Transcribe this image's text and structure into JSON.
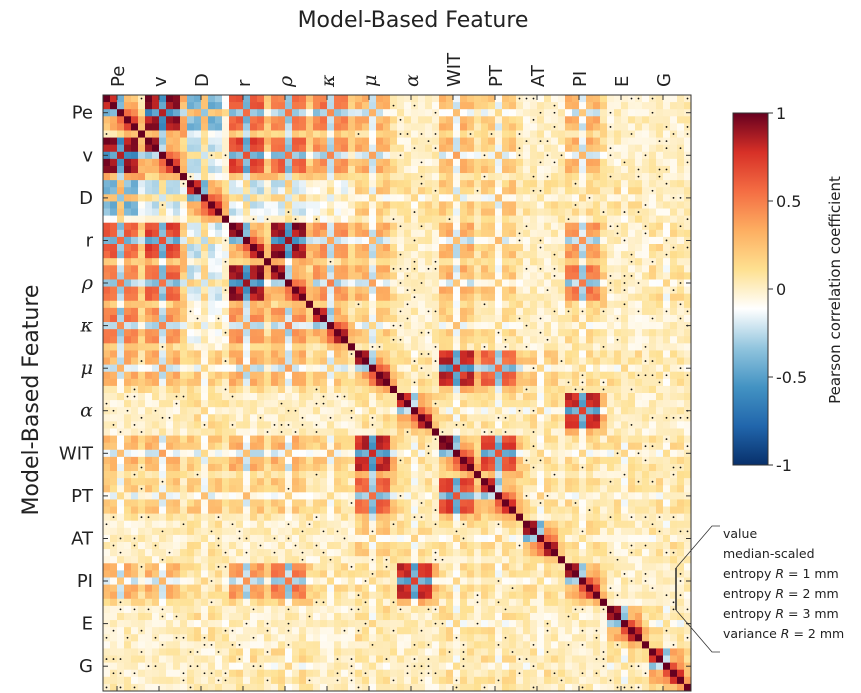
{
  "chart_data": {
    "type": "heatmap",
    "title": "Model-Based Feature",
    "xlabel": "",
    "ylabel": "Model-Based Feature",
    "colorbar": {
      "label": "Pearson correlation coefficient",
      "range": [
        -1,
        1
      ],
      "ticks": [
        "1",
        "0.5",
        "0",
        "-0.5",
        "-1"
      ],
      "colormap": "RdBu_r",
      "colors": [
        "#08306b",
        "#2166ac",
        "#4393c3",
        "#92c5de",
        "#ffffff",
        "#fee090",
        "#fdae61",
        "#f46d43",
        "#d73027",
        "#67001f"
      ]
    },
    "features": [
      {
        "label": "Pe",
        "italic": false
      },
      {
        "label": "v",
        "italic": false
      },
      {
        "label": "D",
        "italic": false
      },
      {
        "label": "r",
        "italic": false
      },
      {
        "label": "ρ",
        "italic": true
      },
      {
        "label": "κ",
        "italic": true
      },
      {
        "label": "μ",
        "italic": true
      },
      {
        "label": "α",
        "italic": true
      },
      {
        "label": "WIT",
        "italic": false
      },
      {
        "label": "PT",
        "italic": false
      },
      {
        "label": "AT",
        "italic": false
      },
      {
        "label": "PI",
        "italic": false
      },
      {
        "label": "E",
        "italic": false
      },
      {
        "label": "G",
        "italic": false
      }
    ],
    "sub_features": [
      "value",
      "median-scaled",
      "entropy R = 1 mm",
      "entropy R = 2 mm",
      "entropy R = 3 mm",
      "variance R = 2 mm"
    ],
    "feature_correlation": [
      [
        1.0,
        0.9,
        -0.4,
        0.6,
        0.5,
        0.5,
        0.3,
        0.0,
        0.3,
        0.2,
        0.0,
        0.3,
        0.0,
        0.0
      ],
      [
        0.9,
        1.0,
        -0.2,
        0.7,
        0.6,
        0.4,
        0.3,
        0.0,
        0.3,
        0.2,
        0.0,
        0.3,
        0.0,
        0.0
      ],
      [
        -0.4,
        -0.2,
        1.0,
        -0.2,
        -0.2,
        -0.1,
        0.2,
        0.1,
        0.2,
        0.2,
        0.1,
        0.1,
        0.1,
        0.0
      ],
      [
        0.6,
        0.7,
        -0.2,
        1.0,
        0.9,
        0.4,
        0.3,
        0.0,
        0.3,
        0.2,
        0.0,
        0.4,
        0.0,
        0.1
      ],
      [
        0.5,
        0.6,
        -0.2,
        0.9,
        1.0,
        0.4,
        0.3,
        0.0,
        0.3,
        0.2,
        0.0,
        0.5,
        0.0,
        0.1
      ],
      [
        0.5,
        0.4,
        -0.1,
        0.4,
        0.4,
        1.0,
        0.2,
        0.0,
        0.2,
        0.1,
        0.0,
        0.1,
        0.0,
        0.0
      ],
      [
        0.3,
        0.3,
        0.2,
        0.3,
        0.3,
        0.2,
        1.0,
        0.1,
        0.8,
        0.6,
        0.2,
        0.1,
        0.1,
        0.1
      ],
      [
        0.0,
        0.0,
        0.1,
        0.0,
        0.0,
        0.0,
        0.1,
        1.0,
        0.1,
        0.1,
        0.1,
        0.8,
        0.0,
        0.0
      ],
      [
        0.3,
        0.3,
        0.2,
        0.3,
        0.3,
        0.2,
        0.8,
        0.1,
        1.0,
        0.7,
        0.1,
        0.1,
        0.1,
        0.1
      ],
      [
        0.2,
        0.2,
        0.2,
        0.2,
        0.2,
        0.1,
        0.6,
        0.1,
        0.7,
        1.0,
        0.1,
        0.1,
        0.1,
        0.1
      ],
      [
        0.0,
        0.0,
        0.1,
        0.0,
        0.0,
        0.0,
        0.2,
        0.1,
        0.1,
        0.1,
        1.0,
        0.1,
        0.0,
        0.1
      ],
      [
        0.3,
        0.3,
        0.1,
        0.4,
        0.5,
        0.1,
        0.1,
        0.8,
        0.1,
        0.1,
        0.1,
        1.0,
        0.0,
        0.0
      ],
      [
        0.0,
        0.0,
        0.1,
        0.0,
        0.0,
        0.0,
        0.1,
        0.0,
        0.1,
        0.1,
        0.0,
        0.0,
        1.0,
        0.1
      ],
      [
        0.0,
        0.0,
        0.0,
        0.1,
        0.1,
        0.0,
        0.1,
        0.0,
        0.1,
        0.1,
        0.1,
        0.0,
        0.1,
        1.0
      ]
    ],
    "sub_feature_pattern": [
      [
        1.0,
        0.85,
        -0.35,
        0.3,
        0.25,
        0.1
      ],
      [
        0.85,
        1.0,
        -0.3,
        0.35,
        0.3,
        0.1
      ],
      [
        -0.35,
        -0.3,
        1.0,
        0.6,
        0.45,
        0.2
      ],
      [
        0.3,
        0.35,
        0.6,
        1.0,
        0.8,
        0.25
      ],
      [
        0.25,
        0.3,
        0.45,
        0.8,
        1.0,
        0.3
      ],
      [
        0.1,
        0.1,
        0.2,
        0.25,
        0.3,
        1.0
      ]
    ]
  }
}
